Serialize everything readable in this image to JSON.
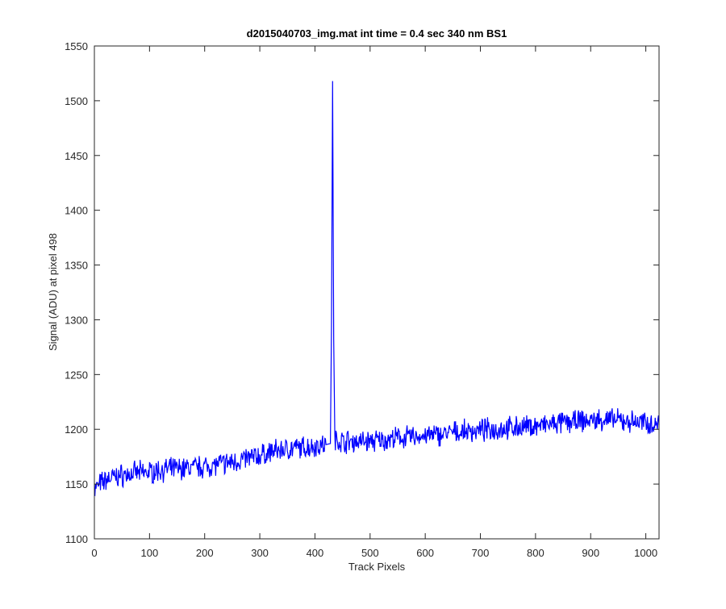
{
  "chart_data": {
    "type": "line",
    "title": "d2015040703_img.mat int time = 0.4 sec  340 nm BS1",
    "xlabel": "Track Pixels",
    "ylabel": "Signal (ADU) at pixel 498",
    "xlim": [
      0,
      1024
    ],
    "ylim": [
      1100,
      1550
    ],
    "xticks": [
      0,
      100,
      200,
      300,
      400,
      500,
      600,
      700,
      800,
      900,
      1000
    ],
    "yticks": [
      1100,
      1150,
      1200,
      1250,
      1300,
      1350,
      1400,
      1450,
      1500,
      1550
    ],
    "grid": false,
    "series": [
      {
        "color": "#0000ff",
        "x": [
          0,
          10,
          25,
          50,
          75,
          100,
          125,
          150,
          175,
          200,
          225,
          250,
          275,
          300,
          325,
          350,
          375,
          400,
          420,
          428,
          430,
          432,
          434,
          436,
          440,
          450,
          475,
          500,
          525,
          550,
          575,
          600,
          625,
          650,
          675,
          700,
          725,
          750,
          775,
          800,
          825,
          850,
          875,
          900,
          925,
          950,
          975,
          1000,
          1024
        ],
        "y": [
          1145,
          1150,
          1155,
          1158,
          1160,
          1161,
          1163,
          1164,
          1165,
          1166,
          1168,
          1170,
          1173,
          1176,
          1180,
          1182,
          1183,
          1185,
          1186,
          1187,
          1295,
          1518,
          1282,
          1190,
          1190,
          1189,
          1189,
          1189,
          1190,
          1192,
          1193,
          1194,
          1195,
          1197,
          1198,
          1199,
          1200,
          1201,
          1202,
          1203,
          1204,
          1206,
          1207,
          1208,
          1209,
          1208,
          1207,
          1206,
          1204
        ]
      }
    ]
  }
}
